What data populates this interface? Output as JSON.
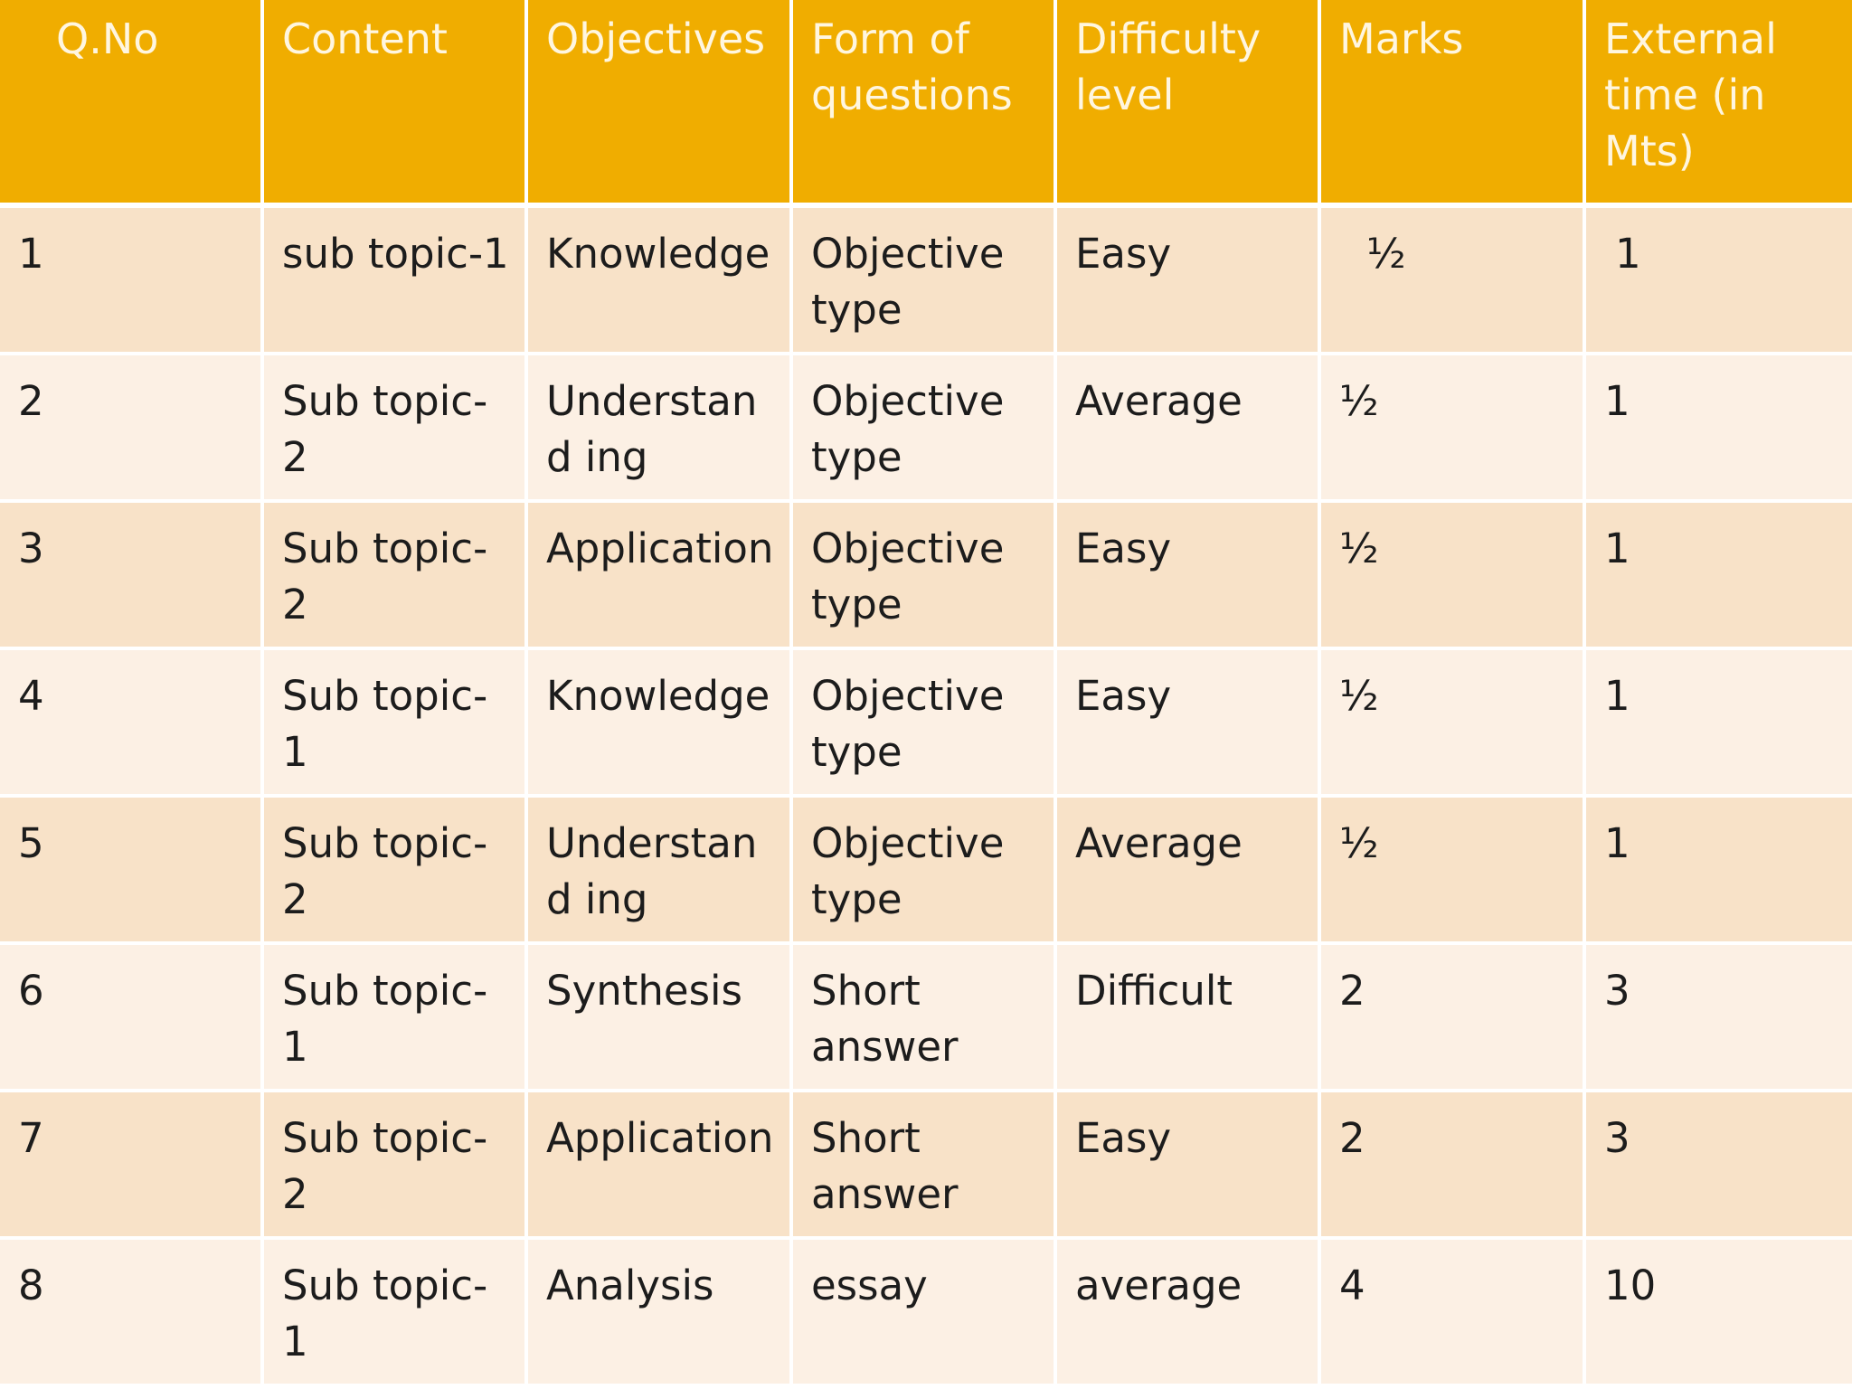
{
  "table": {
    "headers": [
      "Q.No",
      "Content",
      "Objectives",
      "Form of questions",
      "Difficulty level",
      "Marks",
      "External time (in Mts)"
    ],
    "rows": [
      [
        "1",
        "sub topic-1",
        "Knowledge",
        "Objective type",
        "Easy",
        "½",
        "1"
      ],
      [
        "2",
        "Sub topic-2",
        "Understand ing",
        "Objective type",
        "Average",
        "½",
        "1"
      ],
      [
        "3",
        "Sub topic-2",
        "Application",
        "Objective type",
        "Easy",
        "½",
        "1"
      ],
      [
        "4",
        "Sub topic-1",
        "Knowledge",
        "Objective type",
        "Easy",
        "½",
        "1"
      ],
      [
        "5",
        "Sub topic-2",
        "Understand ing",
        "Objective type",
        "Average",
        "½",
        "1"
      ],
      [
        "6",
        "Sub topic-1",
        "Synthesis",
        "Short answer",
        "Difficult",
        "2",
        "3"
      ],
      [
        "7",
        "Sub topic-2",
        "Application",
        "Short answer",
        "Easy",
        "2",
        "3"
      ],
      [
        "8",
        "Sub topic-1",
        "Analysis",
        "essay",
        "average",
        "4",
        "10"
      ]
    ]
  },
  "colors": {
    "header_bg": "#f0ad00",
    "header_text": "#fff6e0",
    "row_dark": "#f8e2c8",
    "row_light": "#fcf0e4"
  }
}
